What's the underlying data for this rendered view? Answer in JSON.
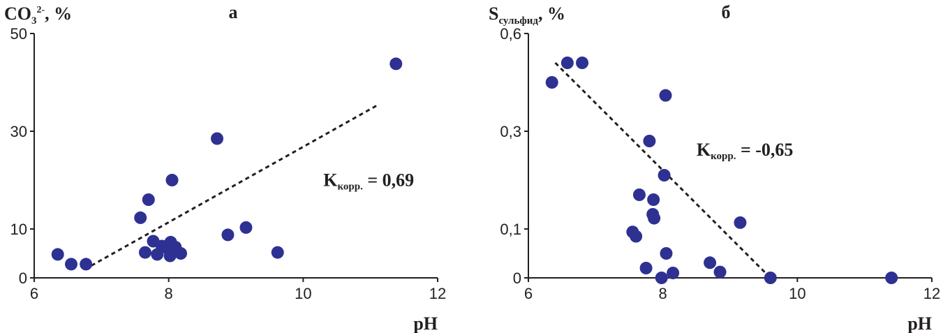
{
  "chart_data": [
    {
      "type": "scatter",
      "panel_label": "а",
      "ylabel": {
        "main": "CO",
        "sub": "3",
        "sup": "2-",
        "rest": ", %"
      },
      "xlabel": "pH",
      "xlim": [
        6,
        12
      ],
      "ylim": [
        0,
        50
      ],
      "xticks": [
        "6",
        "8",
        "10",
        "12"
      ],
      "yticks": [
        {
          "value": 0,
          "label": "0"
        },
        {
          "value": 10,
          "label": "10"
        },
        {
          "value": 30,
          "label": "30"
        },
        {
          "value": 50,
          "label": "50"
        }
      ],
      "grid": false,
      "marker_color": "#2e3192",
      "trendline": {
        "x": [
          6.85,
          11.1
        ],
        "y": [
          2.5,
          35.3
        ]
      },
      "annotation": {
        "main": "K",
        "sub": "корр.",
        "rest": " = 0,69",
        "x": 10.3,
        "y": 18.8
      },
      "points": [
        {
          "x": 6.35,
          "y": 4.8
        },
        {
          "x": 6.55,
          "y": 2.8
        },
        {
          "x": 6.77,
          "y": 2.8
        },
        {
          "x": 7.58,
          "y": 12.3
        },
        {
          "x": 7.65,
          "y": 5.2
        },
        {
          "x": 7.7,
          "y": 16.0
        },
        {
          "x": 7.77,
          "y": 7.5
        },
        {
          "x": 7.83,
          "y": 4.8
        },
        {
          "x": 7.9,
          "y": 6.5
        },
        {
          "x": 8.0,
          "y": 5.8
        },
        {
          "x": 8.02,
          "y": 4.5
        },
        {
          "x": 8.03,
          "y": 7.3
        },
        {
          "x": 8.05,
          "y": 20.0
        },
        {
          "x": 8.1,
          "y": 6.3
        },
        {
          "x": 8.18,
          "y": 5.0
        },
        {
          "x": 8.72,
          "y": 28.5
        },
        {
          "x": 8.88,
          "y": 8.8
        },
        {
          "x": 9.15,
          "y": 10.3
        },
        {
          "x": 9.62,
          "y": 5.2
        },
        {
          "x": 11.38,
          "y": 43.8
        }
      ]
    },
    {
      "type": "scatter",
      "panel_label": "б",
      "ylabel": {
        "main": "S",
        "sub": "сульфид",
        "rest": ", %"
      },
      "xlabel": "pH",
      "xlim": [
        6,
        12
      ],
      "ylim": [
        0,
        0.6
      ],
      "xticks": [
        "6",
        "8",
        "10",
        "12"
      ],
      "yticks": [
        {
          "value": 0,
          "label": "0"
        },
        {
          "value": 0.1,
          "label": "0,1"
        },
        {
          "value": 0.3,
          "label": "0,3"
        },
        {
          "value": 0.6,
          "label": "0,6"
        }
      ],
      "grid": false,
      "marker_color": "#2e3192",
      "trendline": {
        "x": [
          6.4,
          9.6
        ],
        "y": [
          0.51,
          0.0
        ]
      },
      "annotation": {
        "main": "K",
        "sub": "корр.",
        "rest": " = -0,65",
        "x": 8.5,
        "y": 0.25
      },
      "points": [
        {
          "x": 6.35,
          "y": 0.45
        },
        {
          "x": 6.58,
          "y": 0.51
        },
        {
          "x": 6.8,
          "y": 0.51
        },
        {
          "x": 7.55,
          "y": 0.094
        },
        {
          "x": 7.6,
          "y": 0.085
        },
        {
          "x": 7.65,
          "y": 0.17
        },
        {
          "x": 7.75,
          "y": 0.02
        },
        {
          "x": 7.8,
          "y": 0.28
        },
        {
          "x": 7.85,
          "y": 0.13
        },
        {
          "x": 7.86,
          "y": 0.16
        },
        {
          "x": 7.87,
          "y": 0.122
        },
        {
          "x": 7.98,
          "y": 0.0
        },
        {
          "x": 8.02,
          "y": 0.21
        },
        {
          "x": 8.04,
          "y": 0.41
        },
        {
          "x": 8.05,
          "y": 0.05
        },
        {
          "x": 8.15,
          "y": 0.01
        },
        {
          "x": 8.7,
          "y": 0.031
        },
        {
          "x": 8.85,
          "y": 0.012
        },
        {
          "x": 9.15,
          "y": 0.113
        },
        {
          "x": 9.6,
          "y": 0.0
        },
        {
          "x": 11.4,
          "y": 0.0
        }
      ]
    }
  ]
}
